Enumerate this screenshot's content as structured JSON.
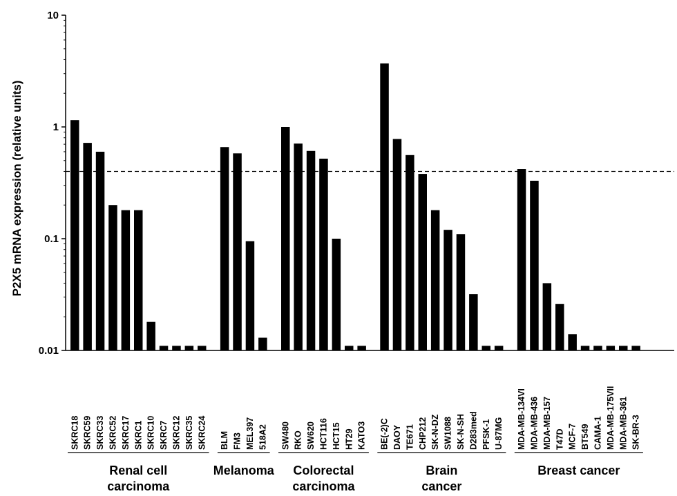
{
  "chart_data": {
    "type": "bar",
    "title": "",
    "xlabel": "",
    "ylabel": "P2X5 mRNA expression (relative units)",
    "yscale": "log",
    "ylim": [
      0.01,
      10
    ],
    "yticks": [
      "0.01",
      "0.1",
      "1",
      "10"
    ],
    "grid": false,
    "reference_line": {
      "y": 0.4,
      "style": "dashed"
    },
    "bar_color": "#000000",
    "groups": [
      {
        "name": "Renal cell carcinoma",
        "name_lines": [
          "Renal cell",
          "carcinoma"
        ],
        "categories": [
          "SKRC18",
          "SKRC59",
          "SKRC33",
          "SKRC52",
          "SKRC17",
          "SKRC1",
          "SKRC10",
          "SKRC7",
          "SKRC12",
          "SKRC35",
          "SKRC24"
        ],
        "values": [
          1.15,
          0.72,
          0.6,
          0.2,
          0.18,
          0.18,
          0.018,
          0.011,
          0.011,
          0.011,
          0.011
        ]
      },
      {
        "name": "Melanoma",
        "name_lines": [
          "Melanoma"
        ],
        "categories": [
          "BLM",
          "FM3",
          "MEL397",
          "518A2"
        ],
        "values": [
          0.66,
          0.58,
          0.095,
          0.013
        ]
      },
      {
        "name": "Colorectal carcinoma",
        "name_lines": [
          "Colorectal",
          "carcinoma"
        ],
        "categories": [
          "SW480",
          "RKO",
          "SW620",
          "HCT116",
          "HCT15",
          "HT29",
          "KATO3"
        ],
        "values": [
          1.0,
          0.71,
          0.61,
          0.52,
          0.1,
          0.011,
          0.011
        ]
      },
      {
        "name": "Brain cancer",
        "name_lines": [
          "Brain",
          "cancer"
        ],
        "categories": [
          "BE(-2)C",
          "DAOY",
          "TE671",
          "CHP212",
          "SK-N-DZ",
          "SW1088",
          "SK-N-SH",
          "D283med",
          "PFSK-1",
          "U-87MG"
        ],
        "values": [
          3.7,
          0.78,
          0.56,
          0.38,
          0.18,
          0.12,
          0.11,
          0.032,
          0.011,
          0.011
        ]
      },
      {
        "name": "Breast cancer",
        "name_lines": [
          "Breast cancer"
        ],
        "categories": [
          "MDA-MB-134VI",
          "MDA-MB-436",
          "MDA-MB-157",
          "T47D",
          "MCF-7",
          "BT549",
          "CAMA-1",
          "MDA-MB-175VII",
          "MDA-MB-361",
          "SK-BR-3"
        ],
        "values": [
          0.42,
          0.33,
          0.04,
          0.026,
          0.014,
          0.011,
          0.011,
          0.011,
          0.011,
          0.011
        ]
      }
    ]
  }
}
